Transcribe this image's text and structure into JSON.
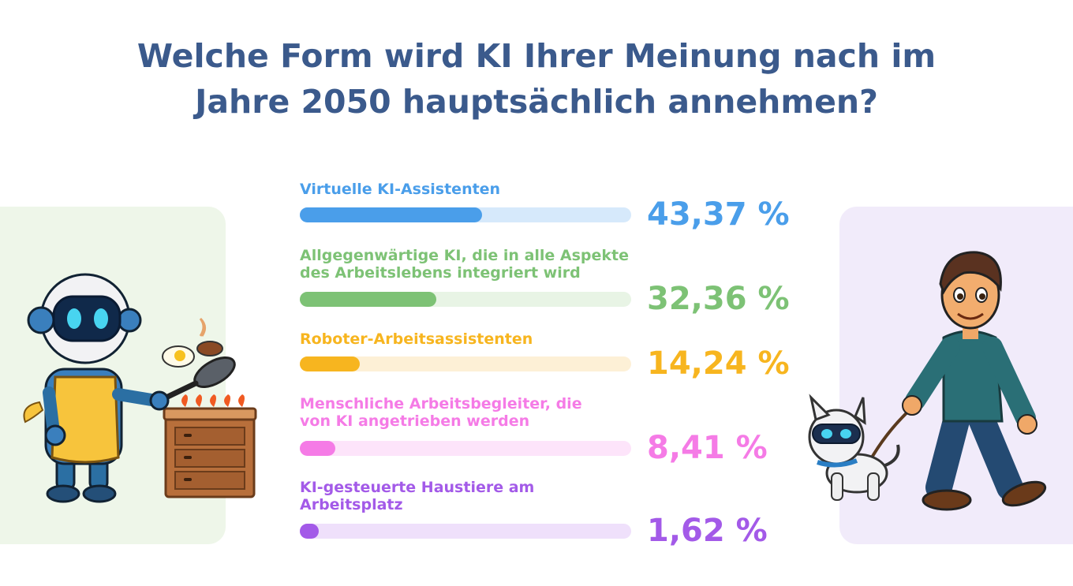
{
  "title_line1": "Welche Form wird KI Ihrer Meinung nach im",
  "title_line2": "Jahre 2050 hauptsächlich annehmen?",
  "chart_data": {
    "type": "bar",
    "orientation": "horizontal",
    "unit": "%",
    "xlim": [
      0,
      100
    ],
    "categories": [
      "Virtuelle KI-Assistenten",
      "Allgegenwärtige KI, die in alle Aspekte des Arbeitslebens integriert wird",
      "Roboter-Arbeitsassistenten",
      "Menschliche Arbeitsbegleiter, die von KI angetrieben werden",
      "KI-gesteuerte Haustiere am Arbeitsplatz"
    ],
    "values": [
      43.37,
      32.36,
      14.24,
      8.41,
      1.62
    ],
    "value_labels": [
      "43,37 %",
      "32,36 %",
      "14,24 %",
      "8,41 %",
      "1,62 %"
    ],
    "label_lines": [
      [
        "Virtuelle KI-Assistenten"
      ],
      [
        "Allgegenwärtige KI, die in alle Aspekte",
        "des Arbeitslebens integriert wird"
      ],
      [
        "Roboter-Arbeitsassistenten"
      ],
      [
        "Menschliche Arbeitsbegleiter, die",
        "von KI angetrieben werden"
      ],
      [
        "KI-gesteuerte Haustiere am",
        "Arbeitsplatz"
      ]
    ],
    "colors": [
      "#4a9eea",
      "#7dc275",
      "#f7b51f",
      "#f57be6",
      "#a35ae8"
    ],
    "track_colors": [
      "#d6e9fb",
      "#e8f4e5",
      "#fdf0d6",
      "#fde4fa",
      "#efe0fb"
    ]
  },
  "illustrations": {
    "left": "robot-chef-icon",
    "right": "man-walking-robot-dog-icon"
  }
}
